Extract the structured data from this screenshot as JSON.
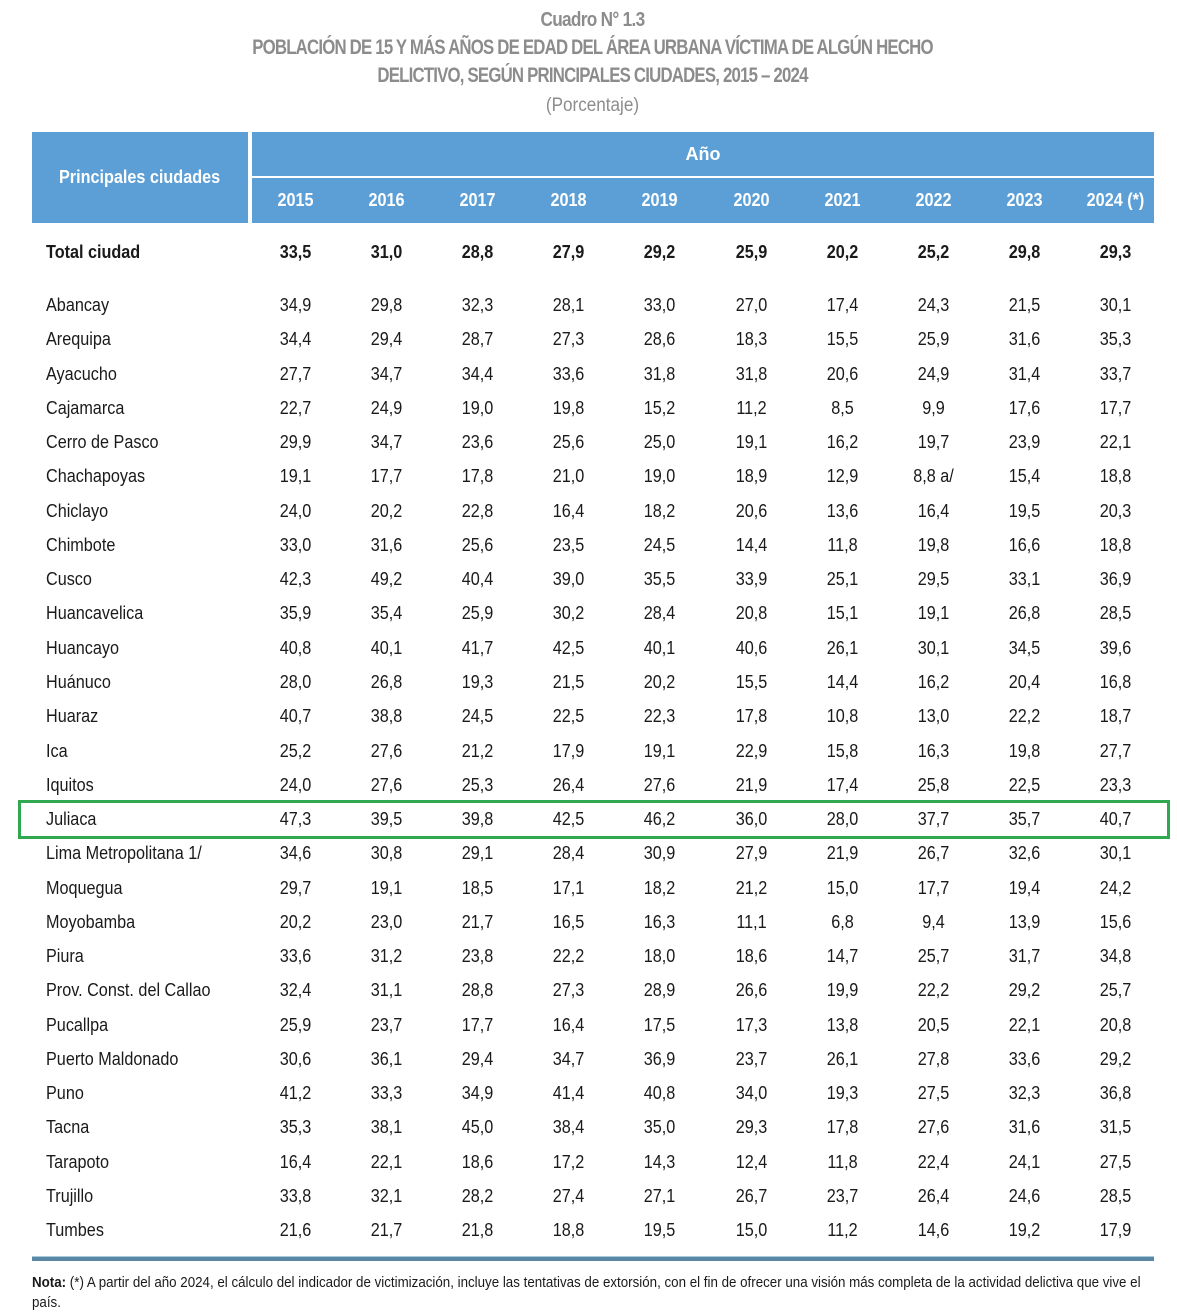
{
  "title": {
    "number": "Cuadro N° 1.3",
    "line1": "POBLACIÓN DE 15 Y MÁS AÑOS DE EDAD DEL ÁREA URBANA VÍCTIMA DE ALGÚN HECHO",
    "line2": "DELICTIVO, SEGÚN PRINCIPALES CIUDADES, 2015 – 2024",
    "unit": "(Porcentaje)"
  },
  "table": {
    "city_header": "Principales ciudades",
    "year_group_header": "Año",
    "years": [
      "2015",
      "2016",
      "2017",
      "2018",
      "2019",
      "2020",
      "2021",
      "2022",
      "2023",
      "2024 (*)"
    ],
    "highlight_color": "#2fa84f",
    "header_color": "#5b9fd6",
    "total": {
      "city": "Total ciudad",
      "values": [
        "33,5",
        "31,0",
        "28,8",
        "27,9",
        "29,2",
        "25,9",
        "20,2",
        "25,2",
        "29,8",
        "29,3"
      ]
    },
    "rows": [
      {
        "city": "Abancay",
        "values": [
          "34,9",
          "29,8",
          "32,3",
          "28,1",
          "33,0",
          "27,0",
          "17,4",
          "24,3",
          "21,5",
          "30,1"
        ]
      },
      {
        "city": "Arequipa",
        "values": [
          "34,4",
          "29,4",
          "28,7",
          "27,3",
          "28,6",
          "18,3",
          "15,5",
          "25,9",
          "31,6",
          "35,3"
        ]
      },
      {
        "city": "Ayacucho",
        "values": [
          "27,7",
          "34,7",
          "34,4",
          "33,6",
          "31,8",
          "31,8",
          "20,6",
          "24,9",
          "31,4",
          "33,7"
        ]
      },
      {
        "city": "Cajamarca",
        "values": [
          "22,7",
          "24,9",
          "19,0",
          "19,8",
          "15,2",
          "11,2",
          "8,5",
          "9,9",
          "17,6",
          "17,7"
        ]
      },
      {
        "city": "Cerro de Pasco",
        "values": [
          "29,9",
          "34,7",
          "23,6",
          "25,6",
          "25,0",
          "19,1",
          "16,2",
          "19,7",
          "23,9",
          "22,1"
        ]
      },
      {
        "city": "Chachapoyas",
        "values": [
          "19,1",
          "17,7",
          "17,8",
          "21,0",
          "19,0",
          "18,9",
          "12,9",
          "8,8 a/",
          "15,4",
          "18,8"
        ]
      },
      {
        "city": "Chiclayo",
        "values": [
          "24,0",
          "20,2",
          "22,8",
          "16,4",
          "18,2",
          "20,6",
          "13,6",
          "16,4",
          "19,5",
          "20,3"
        ]
      },
      {
        "city": "Chimbote",
        "values": [
          "33,0",
          "31,6",
          "25,6",
          "23,5",
          "24,5",
          "14,4",
          "11,8",
          "19,8",
          "16,6",
          "18,8"
        ]
      },
      {
        "city": "Cusco",
        "values": [
          "42,3",
          "49,2",
          "40,4",
          "39,0",
          "35,5",
          "33,9",
          "25,1",
          "29,5",
          "33,1",
          "36,9"
        ]
      },
      {
        "city": "Huancavelica",
        "values": [
          "35,9",
          "35,4",
          "25,9",
          "30,2",
          "28,4",
          "20,8",
          "15,1",
          "19,1",
          "26,8",
          "28,5"
        ]
      },
      {
        "city": "Huancayo",
        "values": [
          "40,8",
          "40,1",
          "41,7",
          "42,5",
          "40,1",
          "40,6",
          "26,1",
          "30,1",
          "34,5",
          "39,6"
        ]
      },
      {
        "city": "Huánuco",
        "values": [
          "28,0",
          "26,8",
          "19,3",
          "21,5",
          "20,2",
          "15,5",
          "14,4",
          "16,2",
          "20,4",
          "16,8"
        ]
      },
      {
        "city": "Huaraz",
        "values": [
          "40,7",
          "38,8",
          "24,5",
          "22,5",
          "22,3",
          "17,8",
          "10,8",
          "13,0",
          "22,2",
          "18,7"
        ]
      },
      {
        "city": "Ica",
        "values": [
          "25,2",
          "27,6",
          "21,2",
          "17,9",
          "19,1",
          "22,9",
          "15,8",
          "16,3",
          "19,8",
          "27,7"
        ]
      },
      {
        "city": "Iquitos",
        "values": [
          "24,0",
          "27,6",
          "25,3",
          "26,4",
          "27,6",
          "21,9",
          "17,4",
          "25,8",
          "22,5",
          "23,3"
        ]
      },
      {
        "city": "Juliaca",
        "values": [
          "47,3",
          "39,5",
          "39,8",
          "42,5",
          "46,2",
          "36,0",
          "28,0",
          "37,7",
          "35,7",
          "40,7"
        ],
        "highlighted": true
      },
      {
        "city": "Lima Metropolitana 1/",
        "values": [
          "34,6",
          "30,8",
          "29,1",
          "28,4",
          "30,9",
          "27,9",
          "21,9",
          "26,7",
          "32,6",
          "30,1"
        ]
      },
      {
        "city": "Moquegua",
        "values": [
          "29,7",
          "19,1",
          "18,5",
          "17,1",
          "18,2",
          "21,2",
          "15,0",
          "17,7",
          "19,4",
          "24,2"
        ]
      },
      {
        "city": "Moyobamba",
        "values": [
          "20,2",
          "23,0",
          "21,7",
          "16,5",
          "16,3",
          "11,1",
          "6,8",
          "9,4",
          "13,9",
          "15,6"
        ]
      },
      {
        "city": "Piura",
        "values": [
          "33,6",
          "31,2",
          "23,8",
          "22,2",
          "18,0",
          "18,6",
          "14,7",
          "25,7",
          "31,7",
          "34,8"
        ]
      },
      {
        "city": "Prov. Const. del Callao",
        "values": [
          "32,4",
          "31,1",
          "28,8",
          "27,3",
          "28,9",
          "26,6",
          "19,9",
          "22,2",
          "29,2",
          "25,7"
        ]
      },
      {
        "city": "Pucallpa",
        "values": [
          "25,9",
          "23,7",
          "17,7",
          "16,4",
          "17,5",
          "17,3",
          "13,8",
          "20,5",
          "22,1",
          "20,8"
        ]
      },
      {
        "city": "Puerto Maldonado",
        "values": [
          "30,6",
          "36,1",
          "29,4",
          "34,7",
          "36,9",
          "23,7",
          "26,1",
          "27,8",
          "33,6",
          "29,2"
        ]
      },
      {
        "city": "Puno",
        "values": [
          "41,2",
          "33,3",
          "34,9",
          "41,4",
          "40,8",
          "34,0",
          "19,3",
          "27,5",
          "32,3",
          "36,8"
        ]
      },
      {
        "city": "Tacna",
        "values": [
          "35,3",
          "38,1",
          "45,0",
          "38,4",
          "35,0",
          "29,3",
          "17,8",
          "27,6",
          "31,6",
          "31,5"
        ]
      },
      {
        "city": "Tarapoto",
        "values": [
          "16,4",
          "22,1",
          "18,6",
          "17,2",
          "14,3",
          "12,4",
          "11,8",
          "22,4",
          "24,1",
          "27,5"
        ]
      },
      {
        "city": "Trujillo",
        "values": [
          "33,8",
          "32,1",
          "28,2",
          "27,4",
          "27,1",
          "26,7",
          "23,7",
          "26,4",
          "24,6",
          "28,5"
        ]
      },
      {
        "city": "Tumbes",
        "values": [
          "21,6",
          "21,7",
          "21,8",
          "18,8",
          "19,5",
          "15,0",
          "11,2",
          "14,6",
          "19,2",
          "17,9"
        ]
      }
    ]
  },
  "note": {
    "label": "Nota:",
    "text": "(*) A partir del año 2024, el cálculo del indicador de victimización, incluye las tentativas de extorsión, con el fin de ofrecer una visión más completa de la actividad delictiva que vive el país."
  }
}
